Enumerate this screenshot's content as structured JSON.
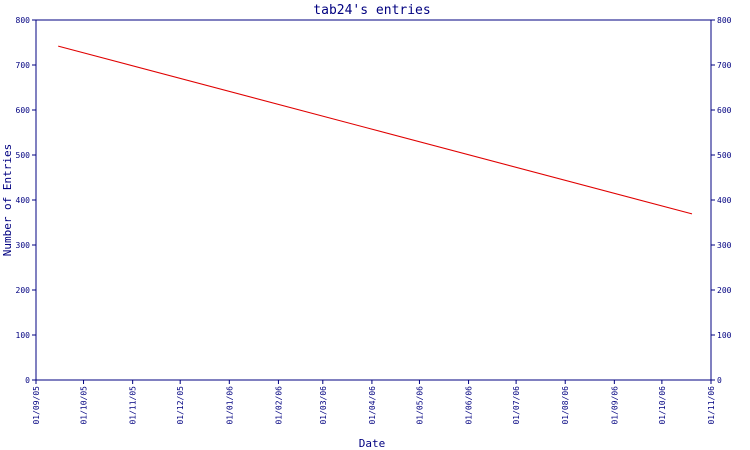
{
  "chart_data": {
    "type": "line",
    "title": "tab24's entries",
    "xlabel": "Date",
    "ylabel": "Number of Entries",
    "ylim": [
      0,
      800
    ],
    "yticks": [
      0,
      100,
      200,
      300,
      400,
      500,
      600,
      700,
      800
    ],
    "xticks": [
      "01/09/05",
      "01/10/05",
      "01/11/05",
      "01/12/05",
      "01/01/06",
      "01/02/06",
      "01/03/06",
      "01/04/06",
      "01/05/06",
      "01/06/06",
      "01/07/06",
      "01/08/06",
      "01/09/06",
      "01/10/06",
      "01/11/06"
    ],
    "grid": false,
    "series": [
      {
        "color": "#e00000",
        "points": [
          {
            "x": "2005-09-15",
            "y": 742
          },
          {
            "x": "2006-10-20",
            "y": 369
          }
        ]
      }
    ]
  }
}
